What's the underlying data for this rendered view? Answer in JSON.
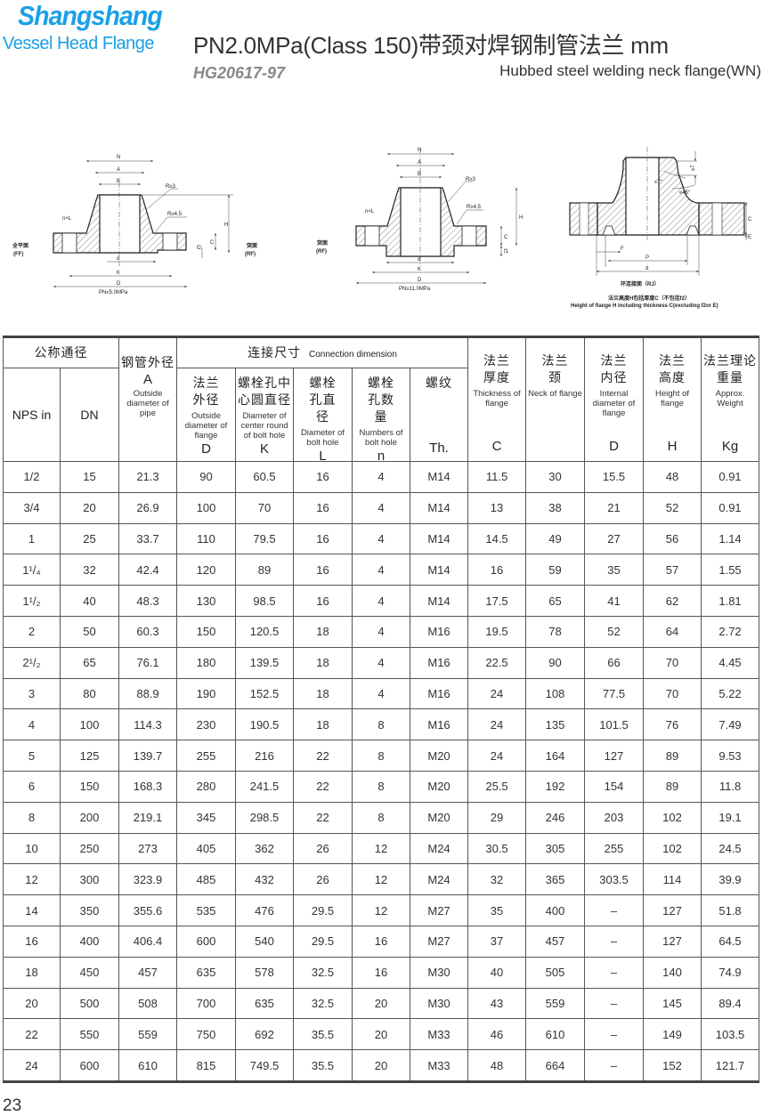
{
  "header": {
    "brand": "Shangshang",
    "brand_sub": "Vessel Head Flange",
    "title": "PN2.0MPa(Class 150)带颈对焊钢制管法兰  mm",
    "standard": "HG20617-97",
    "subtitle": "Hubbed steel welding neck flange(WN)"
  },
  "drawings": {
    "ff_rf": {
      "N": "N",
      "A": "A",
      "B": "B",
      "r3": "R≥3",
      "r45": "R≥4.5",
      "nxl": "n×L",
      "H": "H",
      "C": "C",
      "f2": "f2",
      "d": "d",
      "K": "K",
      "D": "D",
      "caption": "PN≤5.0MPa",
      "ff_zh": "全平面",
      "ff_en": "(FF)",
      "rf_zh": "突面",
      "rf_en": "(RF)"
    },
    "rf": {
      "N": "N",
      "A": "A",
      "B": "B",
      "r3": "R≥3",
      "r45": "R≥4.5",
      "nxl": "n×L",
      "H": "H",
      "C": "C",
      "f2": "f1",
      "d": "d",
      "K": "K",
      "D": "D",
      "caption": "PN≥11.0MPa",
      "rf_zh": "突面",
      "rf_en": "(RF)"
    },
    "rj": {
      "ge7": "≥7",
      "le7": "≤7°",
      "le45": "≤45°",
      "C": "C",
      "E": "E",
      "F": "F",
      "P": "P",
      "d": "d",
      "caption": "环连接面（RJ）",
      "note_zh": "法兰高度H包括厚度C（不包括f2）",
      "note_en": "Height of flange H including thickness C(excluding f2or E)"
    }
  },
  "table": {
    "group_nominal": "公称通径",
    "pipe_zh": "钢管外径",
    "pipe_sym": "A",
    "pipe_en": "Outside diameter of pipe",
    "group_conn_zh": "连接尺寸",
    "group_conn_en": "Connection dimension",
    "nps": "NPS in",
    "dn": "DN",
    "cols": [
      {
        "zh": "法兰外径",
        "en": "Outside diameter of flange",
        "sym": "D"
      },
      {
        "zh": "螺栓孔中心圆直径",
        "en": "Diameter of center round of bolt hole",
        "sym": "K"
      },
      {
        "zh": "螺栓孔直径",
        "en": "Diameter of bolt hole",
        "sym": "L"
      },
      {
        "zh": "螺栓孔数量",
        "en": "Numbers of bolt hole",
        "sym": "n"
      },
      {
        "zh": "螺纹",
        "en": "",
        "sym": "Th."
      },
      {
        "zh": "法兰厚度",
        "en": "Thickness of flange",
        "sym": "C"
      },
      {
        "zh": "法兰颈",
        "en": "Neck of flange",
        "sym": ""
      },
      {
        "zh": "法兰内径",
        "en": "Internal diameter of flange",
        "sym": "D"
      },
      {
        "zh": "法兰高度",
        "en": "Height of flange",
        "sym": "H"
      },
      {
        "zh": "法兰理论重量",
        "en": "Approx. Weight",
        "sym": "Kg"
      }
    ],
    "rows": [
      [
        "1/2",
        "15",
        "21.3",
        "90",
        "60.5",
        "16",
        "4",
        "M14",
        "11.5",
        "30",
        "15.5",
        "48",
        "0.91"
      ],
      [
        "3/4",
        "20",
        "26.9",
        "100",
        "70",
        "16",
        "4",
        "M14",
        "13",
        "38",
        "21",
        "52",
        "0.91"
      ],
      [
        "1",
        "25",
        "33.7",
        "110",
        "79.5",
        "16",
        "4",
        "M14",
        "14.5",
        "49",
        "27",
        "56",
        "1.14"
      ],
      [
        "1¹/₄",
        "32",
        "42.4",
        "120",
        "89",
        "16",
        "4",
        "M14",
        "16",
        "59",
        "35",
        "57",
        "1.55"
      ],
      [
        "1¹/₂",
        "40",
        "48.3",
        "130",
        "98.5",
        "16",
        "4",
        "M14",
        "17.5",
        "65",
        "41",
        "62",
        "1.81"
      ],
      [
        "2",
        "50",
        "60.3",
        "150",
        "120.5",
        "18",
        "4",
        "M16",
        "19.5",
        "78",
        "52",
        "64",
        "2.72"
      ],
      [
        "2¹/₂",
        "65",
        "76.1",
        "180",
        "139.5",
        "18",
        "4",
        "M16",
        "22.5",
        "90",
        "66",
        "70",
        "4.45"
      ],
      [
        "3",
        "80",
        "88.9",
        "190",
        "152.5",
        "18",
        "4",
        "M16",
        "24",
        "108",
        "77.5",
        "70",
        "5.22"
      ],
      [
        "4",
        "100",
        "114.3",
        "230",
        "190.5",
        "18",
        "8",
        "M16",
        "24",
        "135",
        "101.5",
        "76",
        "7.49"
      ],
      [
        "5",
        "125",
        "139.7",
        "255",
        "216",
        "22",
        "8",
        "M20",
        "24",
        "164",
        "127",
        "89",
        "9.53"
      ],
      [
        "6",
        "150",
        "168.3",
        "280",
        "241.5",
        "22",
        "8",
        "M20",
        "25.5",
        "192",
        "154",
        "89",
        "11.8"
      ],
      [
        "8",
        "200",
        "219.1",
        "345",
        "298.5",
        "22",
        "8",
        "M20",
        "29",
        "246",
        "203",
        "102",
        "19.1"
      ],
      [
        "10",
        "250",
        "273",
        "405",
        "362",
        "26",
        "12",
        "M24",
        "30.5",
        "305",
        "255",
        "102",
        "24.5"
      ],
      [
        "12",
        "300",
        "323.9",
        "485",
        "432",
        "26",
        "12",
        "M24",
        "32",
        "365",
        "303.5",
        "114",
        "39.9"
      ],
      [
        "14",
        "350",
        "355.6",
        "535",
        "476",
        "29.5",
        "12",
        "M27",
        "35",
        "400",
        "–",
        "127",
        "51.8"
      ],
      [
        "16",
        "400",
        "406.4",
        "600",
        "540",
        "29.5",
        "16",
        "M27",
        "37",
        "457",
        "–",
        "127",
        "64.5"
      ],
      [
        "18",
        "450",
        "457",
        "635",
        "578",
        "32.5",
        "16",
        "M30",
        "40",
        "505",
        "–",
        "140",
        "74.9"
      ],
      [
        "20",
        "500",
        "508",
        "700",
        "635",
        "32.5",
        "20",
        "M30",
        "43",
        "559",
        "–",
        "145",
        "89.4"
      ],
      [
        "22",
        "550",
        "559",
        "750",
        "692",
        "35.5",
        "20",
        "M33",
        "46",
        "610",
        "–",
        "149",
        "103.5"
      ],
      [
        "24",
        "600",
        "610",
        "815",
        "749.5",
        "35.5",
        "20",
        "M33",
        "48",
        "664",
        "–",
        "152",
        "121.7"
      ]
    ]
  },
  "page_number": "23",
  "colors": {
    "brand": "#1aa0e6",
    "standard": "#888888",
    "text": "#333333"
  }
}
